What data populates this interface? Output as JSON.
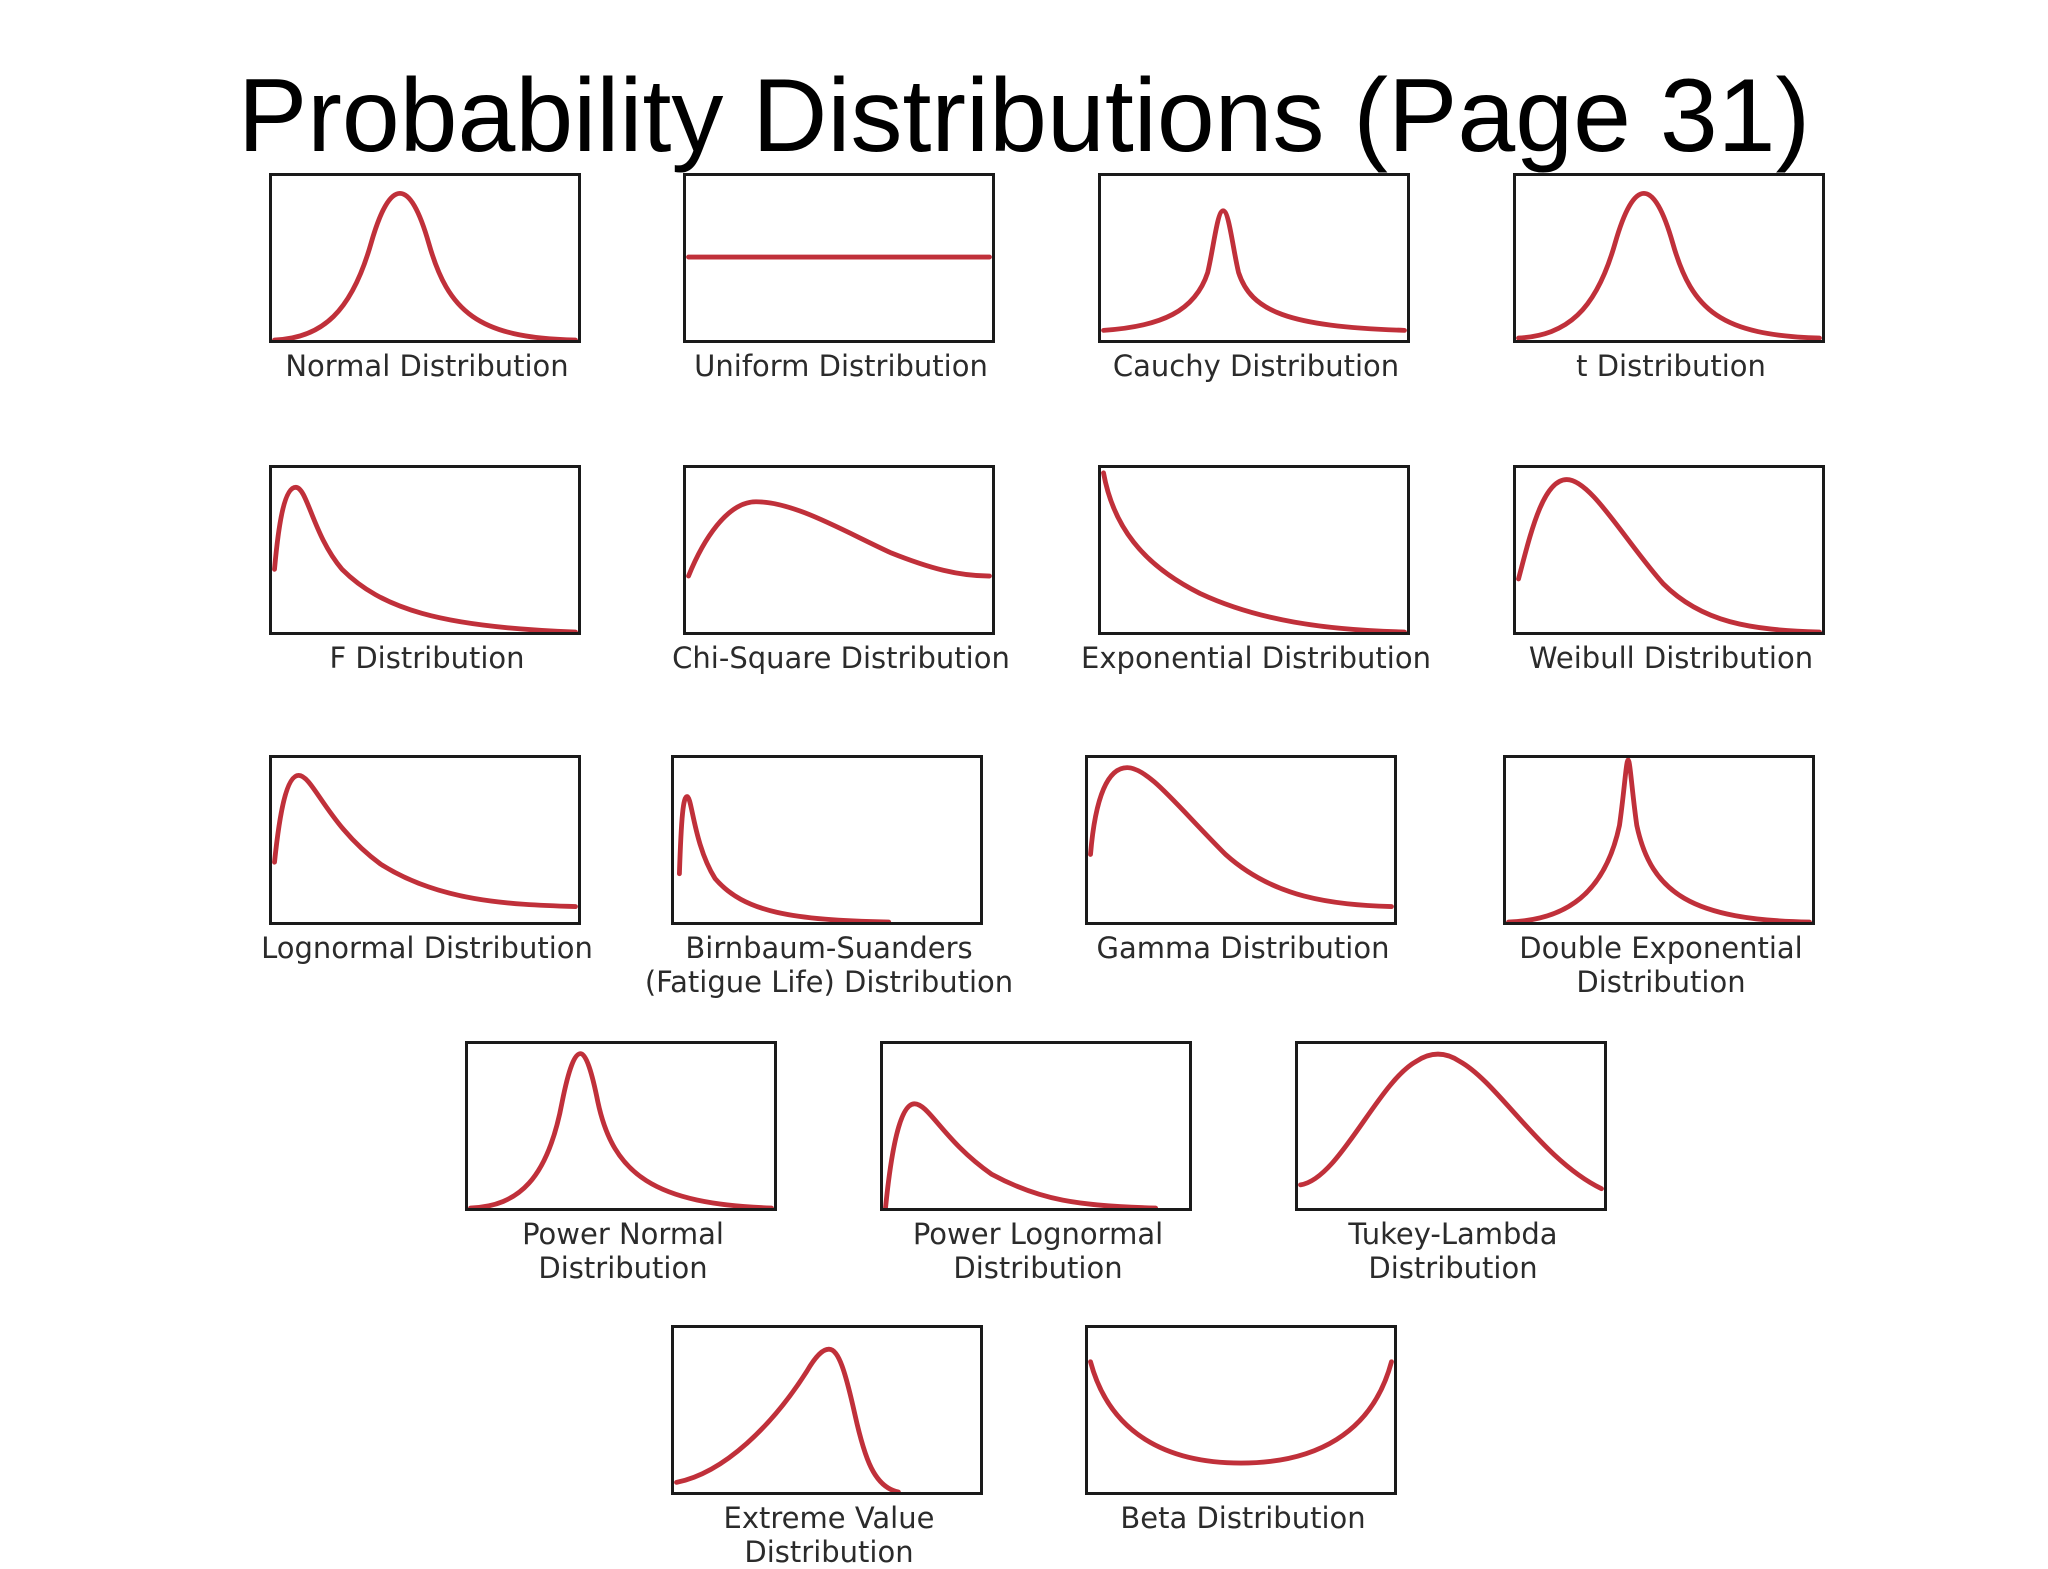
{
  "title": "Probability Distributions (Page 31)",
  "colors": {
    "curve": "#c0303a",
    "frame": "#1a1a1a",
    "text": "#2b2b2b"
  },
  "panels": [
    {
      "id": "normal",
      "label": "Normal Distribution"
    },
    {
      "id": "uniform",
      "label": "Uniform Distribution"
    },
    {
      "id": "cauchy",
      "label": "Cauchy Distribution"
    },
    {
      "id": "t",
      "label": "t Distribution"
    },
    {
      "id": "f",
      "label": "F Distribution"
    },
    {
      "id": "chi-square",
      "label": "Chi-Square Distribution"
    },
    {
      "id": "exponential",
      "label": "Exponential Distribution"
    },
    {
      "id": "weibull",
      "label": "Weibull Distribution"
    },
    {
      "id": "lognormal",
      "label": "Lognormal Distribution"
    },
    {
      "id": "birnbaum-saunders",
      "label": "Birnbaum-Suanders\n(Fatigue Life) Distribution"
    },
    {
      "id": "gamma",
      "label": "Gamma Distribution"
    },
    {
      "id": "double-exponential",
      "label": "Double Exponential\nDistribution"
    },
    {
      "id": "power-normal",
      "label": "Power Normal Distribution"
    },
    {
      "id": "power-lognormal",
      "label": "Power Lognormal\nDistribution"
    },
    {
      "id": "tukey-lambda",
      "label": "Tukey-Lambda Distribution"
    },
    {
      "id": "extreme-value",
      "label": "Extreme Value Distribution"
    },
    {
      "id": "beta",
      "label": "Beta Distribution"
    }
  ]
}
